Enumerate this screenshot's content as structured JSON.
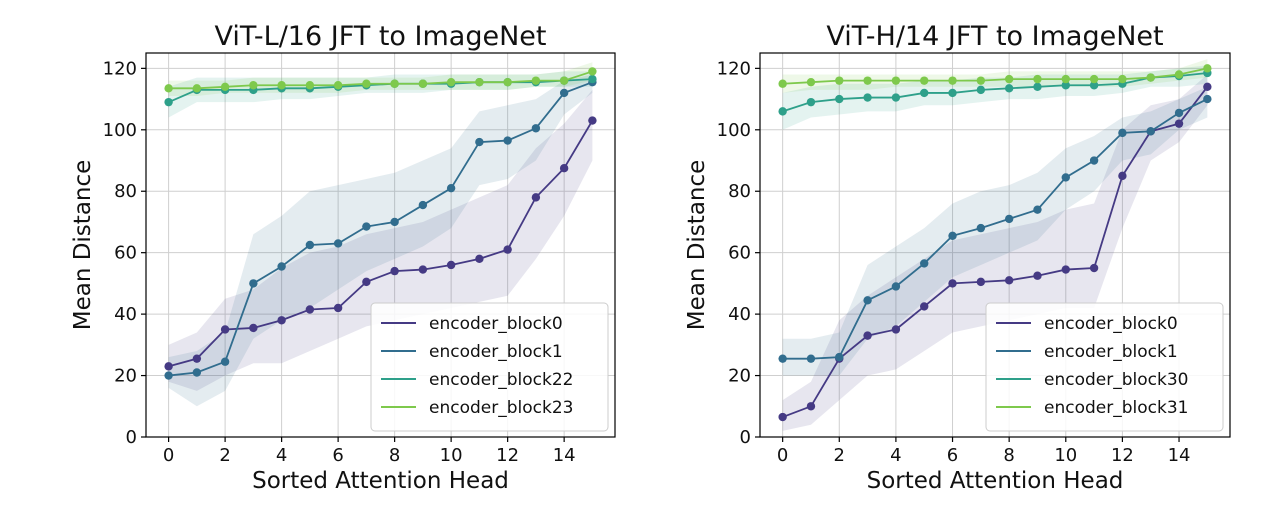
{
  "chart_data": [
    {
      "type": "line",
      "title": "ViT-L/16 JFT to ImageNet",
      "xlabel": "Sorted Attention Head",
      "ylabel": "Mean Distance",
      "xlim": [
        -0.8,
        15.8
      ],
      "ylim": [
        0,
        125
      ],
      "xticks": [
        0,
        2,
        4,
        6,
        8,
        10,
        12,
        14
      ],
      "yticks": [
        0,
        20,
        40,
        60,
        80,
        100,
        120
      ],
      "grid": true,
      "legend_position": "lower-right",
      "x": [
        0,
        1,
        2,
        3,
        4,
        5,
        6,
        7,
        8,
        9,
        10,
        11,
        12,
        13,
        14,
        15
      ],
      "series": [
        {
          "name": "encoder_block0",
          "color": "#453a84",
          "values": [
            23,
            25.5,
            35,
            35.5,
            38,
            41.5,
            42,
            50.5,
            54,
            54.5,
            56,
            58,
            61,
            78,
            87.5,
            103
          ],
          "band_low": [
            18,
            15,
            20,
            24,
            24,
            28,
            32,
            36,
            38,
            40,
            42,
            44,
            46,
            58,
            72,
            90
          ],
          "band_high": [
            30,
            34,
            45,
            48,
            55,
            60,
            62,
            66,
            68,
            70,
            74,
            78,
            82,
            94,
            102,
            113
          ]
        },
        {
          "name": "encoder_block1",
          "color": "#316d8e",
          "values": [
            20,
            21,
            24.5,
            50,
            55.5,
            62.5,
            63,
            68.5,
            70,
            75.5,
            81,
            96,
            96.5,
            100.5,
            112,
            115.5
          ],
          "band_low": [
            16,
            10,
            15,
            32,
            38,
            42,
            48,
            54,
            58,
            62,
            68,
            82,
            84,
            90,
            105,
            112
          ],
          "band_high": [
            26,
            28,
            34,
            66,
            72,
            80,
            82,
            84,
            86,
            90,
            94,
            106,
            108,
            110,
            116,
            118
          ]
        },
        {
          "name": "encoder_block22",
          "color": "#2ea08a",
          "values": [
            109,
            113,
            113,
            113,
            113.5,
            113.5,
            114,
            114.5,
            115,
            115,
            115,
            115.5,
            115.5,
            115.5,
            116,
            116.5
          ],
          "band_low": [
            104,
            109,
            109,
            109,
            110,
            110,
            111,
            112,
            112,
            112,
            113,
            113,
            113,
            114,
            114,
            114
          ],
          "band_high": [
            114,
            117,
            117,
            117,
            117,
            117,
            117,
            117,
            118,
            118,
            118,
            118,
            118,
            118,
            119,
            119
          ]
        },
        {
          "name": "encoder_block23",
          "color": "#7ec94c",
          "values": [
            113.5,
            113.5,
            114,
            114.5,
            114.5,
            114.5,
            114.5,
            115,
            115,
            115,
            115.5,
            115.5,
            115.5,
            116,
            116,
            119
          ],
          "band_low": [
            111,
            111,
            112,
            112,
            112,
            112,
            112,
            113,
            113,
            113,
            113,
            113,
            113,
            114,
            114,
            116
          ],
          "band_high": [
            116,
            116,
            116,
            117,
            117,
            117,
            117,
            117,
            117,
            117,
            118,
            118,
            118,
            118,
            119,
            122
          ]
        }
      ]
    },
    {
      "type": "line",
      "title": "ViT-H/14 JFT to ImageNet",
      "xlabel": "Sorted Attention Head",
      "ylabel": "Mean Distance",
      "xlim": [
        -0.8,
        15.8
      ],
      "ylim": [
        0,
        125
      ],
      "xticks": [
        0,
        2,
        4,
        6,
        8,
        10,
        12,
        14
      ],
      "yticks": [
        0,
        20,
        40,
        60,
        80,
        100,
        120
      ],
      "grid": true,
      "legend_position": "lower-right",
      "x": [
        0,
        1,
        2,
        3,
        4,
        5,
        6,
        7,
        8,
        9,
        10,
        11,
        12,
        13,
        14,
        15
      ],
      "series": [
        {
          "name": "encoder_block0",
          "color": "#453a84",
          "values": [
            6.5,
            10,
            25.5,
            33,
            35,
            42.5,
            50,
            50.5,
            51,
            52.5,
            54.5,
            55,
            85,
            99.5,
            102,
            114
          ],
          "band_low": [
            2,
            4,
            12,
            20,
            22,
            28,
            34,
            36,
            38,
            40,
            42,
            42,
            68,
            90,
            96,
            108
          ],
          "band_high": [
            12,
            18,
            38,
            46,
            52,
            58,
            64,
            66,
            68,
            70,
            74,
            76,
            100,
            108,
            110,
            118
          ]
        },
        {
          "name": "encoder_block1",
          "color": "#316d8e",
          "values": [
            25.5,
            25.5,
            26,
            44.5,
            49,
            56.5,
            65.5,
            68,
            71,
            74,
            84.5,
            90,
            99,
            99.5,
            105.5,
            110
          ],
          "band_low": [
            20,
            20,
            20,
            32,
            36,
            44,
            52,
            56,
            60,
            64,
            74,
            80,
            90,
            92,
            100,
            104
          ],
          "band_high": [
            32,
            32,
            34,
            56,
            62,
            68,
            76,
            80,
            82,
            86,
            94,
            98,
            104,
            106,
            110,
            114
          ]
        },
        {
          "name": "encoder_block30",
          "color": "#2ea08a",
          "values": [
            106,
            109,
            110,
            110.5,
            110.5,
            112,
            112,
            113,
            113.5,
            114,
            114.5,
            114.5,
            115,
            117,
            117.5,
            118.5
          ],
          "band_low": [
            100,
            104,
            105,
            106,
            106,
            108,
            108,
            109,
            110,
            110,
            111,
            111,
            112,
            114,
            114,
            115
          ],
          "band_high": [
            112,
            114,
            115,
            115,
            115,
            116,
            116,
            117,
            117,
            118,
            118,
            118,
            118,
            119,
            120,
            121
          ]
        },
        {
          "name": "encoder_block31",
          "color": "#7ec94c",
          "values": [
            115,
            115.5,
            116,
            116,
            116,
            116,
            116,
            116,
            116.5,
            116.5,
            116.5,
            116.5,
            116.5,
            117,
            118,
            120
          ],
          "band_low": [
            112,
            113,
            113,
            113,
            114,
            114,
            114,
            114,
            114,
            114,
            114,
            114,
            114,
            115,
            116,
            117
          ],
          "band_high": [
            118,
            118,
            118,
            118,
            118,
            118,
            118,
            118,
            119,
            119,
            119,
            119,
            119,
            119,
            120,
            123
          ]
        }
      ]
    }
  ]
}
